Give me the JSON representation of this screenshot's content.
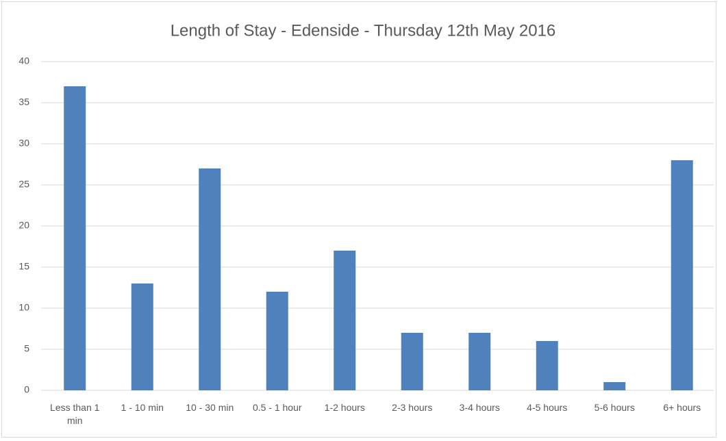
{
  "chart_data": {
    "type": "bar",
    "title": "Length of Stay - Edenside - Thursday 12th May 2016",
    "categories": [
      "Less than 1 min",
      "1 - 10 min",
      "10 - 30 min",
      "0.5 - 1 hour",
      "1-2 hours",
      "2-3 hours",
      "3-4 hours",
      "4-5 hours",
      "5-6 hours",
      "6+ hours"
    ],
    "values": [
      37,
      13,
      27,
      12,
      17,
      7,
      7,
      6,
      1,
      28
    ],
    "color": "#4f81bd",
    "ylim": [
      0,
      40
    ],
    "yticks": [
      0,
      5,
      10,
      15,
      20,
      25,
      30,
      35,
      40
    ],
    "grid": true
  }
}
